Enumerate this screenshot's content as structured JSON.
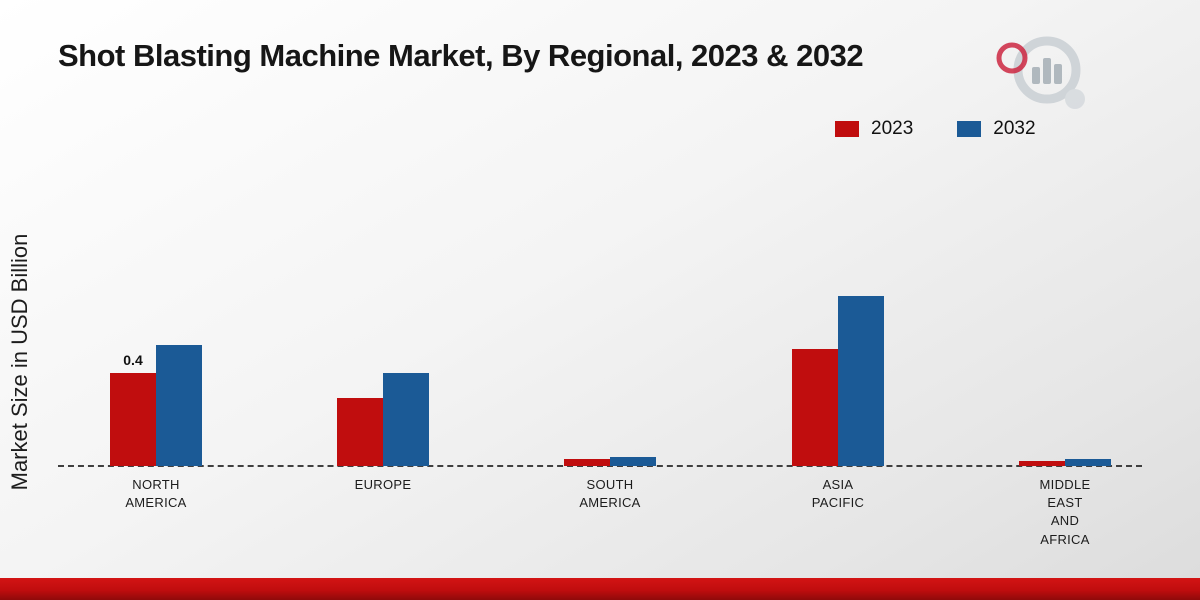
{
  "title": "Shot Blasting Machine Market, By Regional, 2023 & 2032",
  "ylabel": "Market Size in USD Billion",
  "colors": {
    "series_2023": "#c00d0e",
    "series_2032": "#1b5a96",
    "ribbon": "#c00d0e",
    "background_start": "#ffffff",
    "background_end": "#dcdcdc"
  },
  "legend": [
    {
      "label": "2023",
      "color": "#c00d0e"
    },
    {
      "label": "2032",
      "color": "#1b5a96"
    }
  ],
  "chart_data": {
    "type": "bar",
    "title": "Shot Blasting Machine Market, By Regional, 2023 & 2032",
    "xlabel": "",
    "ylabel": "Market Size in USD Billion",
    "ylim": [
      0,
      0.8
    ],
    "grid": false,
    "legend_position": "top-right",
    "baseline_dashed": true,
    "categories": [
      "NORTH\nAMERICA",
      "EUROPE",
      "SOUTH\nAMERICA",
      "ASIA\nPACIFIC",
      "MIDDLE\nEAST\nAND\nAFRICA"
    ],
    "series": [
      {
        "name": "2023",
        "color": "#c00d0e",
        "values": [
          0.4,
          0.29,
          0.03,
          0.5,
          0.02
        ]
      },
      {
        "name": "2032",
        "color": "#1b5a96",
        "values": [
          0.52,
          0.4,
          0.04,
          0.73,
          0.03
        ]
      }
    ],
    "annotations": [
      {
        "series": "2023",
        "category_index": 0,
        "text": "0.4"
      }
    ]
  }
}
